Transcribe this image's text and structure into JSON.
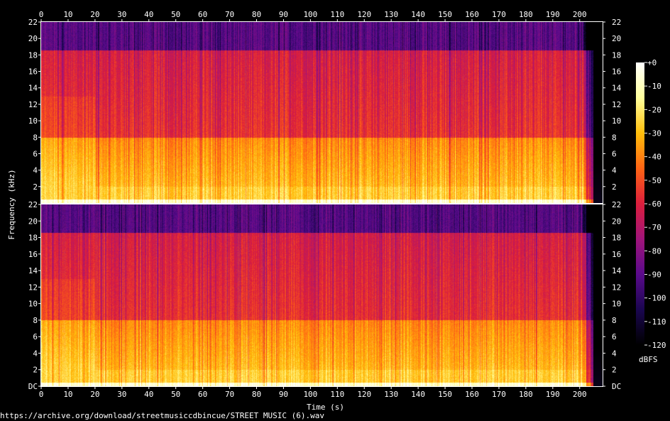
{
  "chart_data": {
    "type": "heatmap",
    "title": "",
    "xlabel": "Time (s)",
    "ylabel": "Frequency (kHz)",
    "xlim": [
      0,
      208.5
    ],
    "ylim": [
      0,
      22
    ],
    "x_ticks": [
      "0",
      "10",
      "20",
      "30",
      "40",
      "50",
      "60",
      "70",
      "80",
      "90",
      "100",
      "110",
      "120",
      "130",
      "140",
      "150",
      "160",
      "170",
      "180",
      "190",
      "200"
    ],
    "y_ticks_top": [
      "2",
      "4",
      "6",
      "8",
      "10",
      "12",
      "14",
      "16",
      "18",
      "20",
      "22"
    ],
    "y_ticks_bottom": [
      "DC",
      "2",
      "4",
      "6",
      "8",
      "10",
      "12",
      "14",
      "16",
      "18",
      "20",
      "22"
    ],
    "channels": [
      "left",
      "right"
    ],
    "colorbar": {
      "label": "dBFS",
      "ticks": [
        "+0",
        "-10",
        "-20",
        "-30",
        "-40",
        "-50",
        "-60",
        "-70",
        "-80",
        "-90",
        "-100",
        "-110",
        "-120"
      ],
      "range": [
        -120,
        0
      ],
      "colors": [
        "#000000",
        "#1a0650",
        "#5a0a8c",
        "#a0147a",
        "#dc1e3c",
        "#ff6414",
        "#ffbe0a",
        "#ffff9c",
        "#ffffff"
      ]
    },
    "approx_levels_dbfs": {
      "below_2khz": -25,
      "2_to_8khz": -38,
      "8_to_18khz": -55,
      "above_18_6khz": -90,
      "after_205s": -115
    }
  },
  "footer": {
    "source": "https://archive.org/download/streetmusiccdbincue/STREET MUSIC (6).wav"
  }
}
